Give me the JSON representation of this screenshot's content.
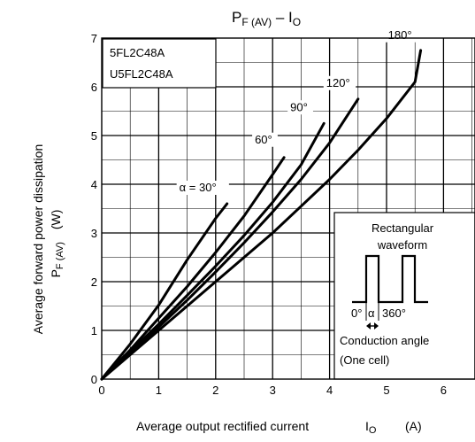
{
  "chart_data": {
    "type": "line",
    "title": "P",
    "title_sub": "F (AV)",
    "title_dash": " – I",
    "title_sub2": "O",
    "ylabel_line1": "Average forward power dissipation",
    "ylabel_line2": "P",
    "ylabel_sub": "F (AV)",
    "ylabel_unit": "(W)",
    "xlabel": "Average output rectified current",
    "xlabel_sym": "I",
    "xlabel_sub": "O",
    "xlabel_unit": "(A)",
    "xlim": [
      0,
      7
    ],
    "ylim": [
      0,
      7
    ],
    "xticks": [
      "0",
      "1",
      "2",
      "3",
      "4",
      "5",
      "6"
    ],
    "yticks": [
      "0",
      "1",
      "2",
      "3",
      "4",
      "5",
      "6",
      "7"
    ],
    "grid": true,
    "device_labels": [
      "5FL2C48A",
      "U5FL2C48A"
    ],
    "series": [
      {
        "name": "α = 30°",
        "x": [
          0,
          0.5,
          1,
          1.5,
          2,
          2.2
        ],
        "y": [
          0,
          0.72,
          1.52,
          2.45,
          3.3,
          3.6
        ]
      },
      {
        "name": "60°",
        "x": [
          0,
          0.5,
          1,
          1.5,
          2,
          2.5,
          3,
          3.2
        ],
        "y": [
          0,
          0.6,
          1.25,
          1.9,
          2.6,
          3.35,
          4.2,
          4.55
        ]
      },
      {
        "name": "90°",
        "x": [
          0,
          0.5,
          1,
          1.5,
          2,
          2.5,
          3,
          3.5,
          3.9
        ],
        "y": [
          0,
          0.56,
          1.13,
          1.72,
          2.32,
          2.95,
          3.63,
          4.4,
          5.25
        ]
      },
      {
        "name": "120°",
        "x": [
          0,
          0.5,
          1,
          1.5,
          2,
          2.5,
          3,
          3.5,
          4,
          4.5
        ],
        "y": [
          0,
          0.53,
          1.07,
          1.62,
          2.2,
          2.8,
          3.43,
          4.1,
          4.85,
          5.75
        ]
      },
      {
        "name": "180°",
        "x": [
          0,
          0.5,
          1,
          1.5,
          2,
          2.5,
          3,
          3.5,
          4,
          4.5,
          5,
          5.5,
          5.6
        ],
        "y": [
          0,
          0.5,
          1.0,
          1.5,
          2.0,
          2.5,
          3.0,
          3.55,
          4.1,
          4.7,
          5.35,
          6.1,
          6.75
        ]
      }
    ],
    "inset": {
      "title_line1": "Rectangular",
      "title_line2": "waveform",
      "label_zero": "0°",
      "label_alpha": "α",
      "label_360": "360°",
      "caption_line1": "Conduction angle",
      "caption_line2": "(One cell)"
    }
  }
}
